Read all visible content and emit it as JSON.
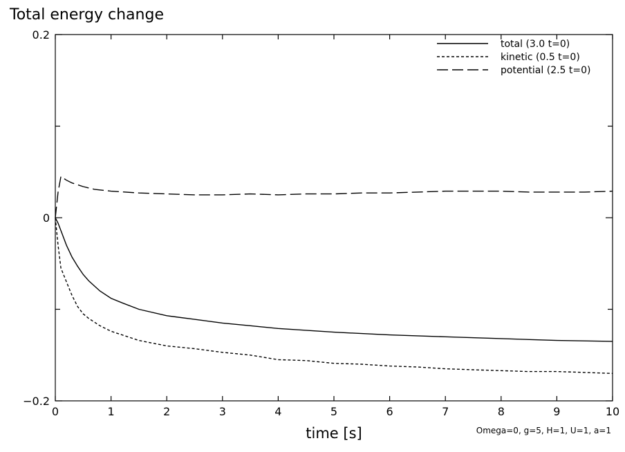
{
  "chart_data": {
    "type": "line",
    "title": "Total energy change",
    "xlabel": "time [s]",
    "ylabel": "",
    "xlim": [
      0,
      10
    ],
    "ylim": [
      -0.2,
      0.2
    ],
    "x_ticks": [
      0,
      1,
      2,
      3,
      4,
      5,
      6,
      7,
      8,
      9,
      10
    ],
    "x_tick_labels": [
      "0",
      "1",
      "2",
      "3",
      "4",
      "5",
      "6",
      "7",
      "8",
      "9",
      "10"
    ],
    "y_ticks": [
      -0.2,
      0,
      0.2
    ],
    "y_tick_labels": [
      "−0.2",
      "0",
      "0.2"
    ],
    "grid": false,
    "legend_position": "top-right",
    "annotation": "Omega=0, g=5, H=1, U=1, a=1",
    "series": [
      {
        "name": "total (3.0 t=0)",
        "style": "solid",
        "x": [
          0,
          0.05,
          0.1,
          0.2,
          0.3,
          0.4,
          0.5,
          0.6,
          0.8,
          1.0,
          1.2,
          1.5,
          2.0,
          2.5,
          3.0,
          3.5,
          4.0,
          5.0,
          6.0,
          7.0,
          8.0,
          9.0,
          10.0
        ],
        "values": [
          0,
          -0.006,
          -0.014,
          -0.03,
          -0.043,
          -0.053,
          -0.062,
          -0.069,
          -0.08,
          -0.088,
          -0.093,
          -0.1,
          -0.107,
          -0.111,
          -0.115,
          -0.118,
          -0.121,
          -0.125,
          -0.128,
          -0.13,
          -0.132,
          -0.134,
          -0.135
        ]
      },
      {
        "name": "kinetic (0.5 t=0)",
        "style": "short-dash",
        "x": [
          0,
          0.05,
          0.1,
          0.2,
          0.3,
          0.4,
          0.5,
          0.6,
          0.8,
          1.0,
          1.2,
          1.5,
          2.0,
          2.5,
          3.0,
          3.5,
          4.0,
          4.5,
          5.0,
          5.5,
          6.0,
          6.5,
          7.0,
          7.5,
          8.0,
          8.5,
          9.0,
          9.5,
          10.0
        ],
        "values": [
          0,
          -0.03,
          -0.055,
          -0.07,
          -0.085,
          -0.097,
          -0.105,
          -0.11,
          -0.118,
          -0.124,
          -0.128,
          -0.134,
          -0.14,
          -0.143,
          -0.147,
          -0.15,
          -0.155,
          -0.156,
          -0.159,
          -0.16,
          -0.162,
          -0.163,
          -0.165,
          -0.166,
          -0.167,
          -0.168,
          -0.168,
          -0.169,
          -0.17
        ]
      },
      {
        "name": "potential (2.5 t=0)",
        "style": "long-dash",
        "x": [
          0,
          0.05,
          0.1,
          0.2,
          0.3,
          0.5,
          0.7,
          1.0,
          1.5,
          2.0,
          2.5,
          3.0,
          3.5,
          4.0,
          4.5,
          5.0,
          5.5,
          6.0,
          6.5,
          7.0,
          7.5,
          8.0,
          8.5,
          9.0,
          9.5,
          10.0
        ],
        "values": [
          0,
          0.028,
          0.045,
          0.041,
          0.038,
          0.034,
          0.031,
          0.029,
          0.027,
          0.026,
          0.025,
          0.025,
          0.026,
          0.025,
          0.026,
          0.026,
          0.027,
          0.027,
          0.028,
          0.029,
          0.029,
          0.029,
          0.028,
          0.028,
          0.028,
          0.029
        ]
      }
    ]
  }
}
